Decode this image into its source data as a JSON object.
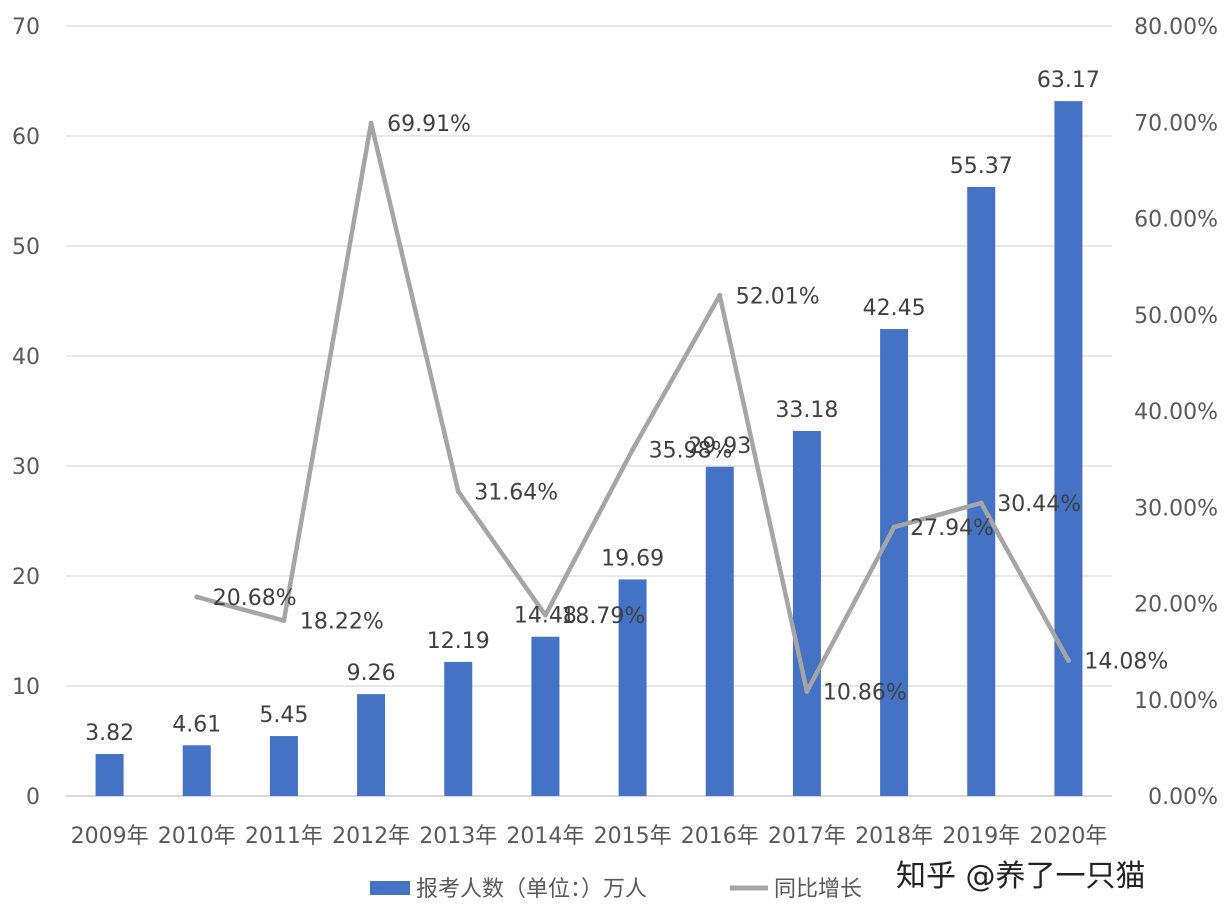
{
  "chart_data": {
    "type": "bar",
    "categories": [
      "2009年",
      "2010年",
      "2011年",
      "2012年",
      "2013年",
      "2014年",
      "2015年",
      "2016年",
      "2017年",
      "2018年",
      "2019年",
      "2020年"
    ],
    "series": [
      {
        "name": "报考人数（单位：）万人",
        "type": "bar",
        "axis": "left",
        "color": "#4472C4",
        "values": [
          3.82,
          4.61,
          5.45,
          9.26,
          12.19,
          14.48,
          19.69,
          29.93,
          33.18,
          42.45,
          55.37,
          63.17
        ],
        "labels": [
          "3.82",
          "4.61",
          "5.45",
          "9.26",
          "12.19",
          "14.48",
          "19.69",
          "29.93",
          "33.18",
          "42.45",
          "55.37",
          "63.17"
        ]
      },
      {
        "name": "同比增长",
        "type": "line",
        "axis": "right",
        "color": "#A5A5A5",
        "values": [
          null,
          20.68,
          18.22,
          69.91,
          31.64,
          18.79,
          35.98,
          52.01,
          10.86,
          27.94,
          30.44,
          14.08
        ],
        "labels": [
          null,
          "20.68%",
          "18.22%",
          "69.91%",
          "31.64%",
          "18.79%",
          "35.98%",
          "52.01%",
          "10.86%",
          "27.94%",
          "30.44%",
          "14.08%"
        ]
      }
    ],
    "y_left": {
      "min": 0,
      "max": 70,
      "ticks": [
        "0",
        "10",
        "20",
        "30",
        "40",
        "50",
        "60",
        "70"
      ]
    },
    "y_right": {
      "min": 0,
      "max": 80,
      "ticks": [
        "0.00%",
        "10.00%",
        "20.00%",
        "30.00%",
        "40.00%",
        "50.00%",
        "60.00%",
        "70.00%",
        "80.00%"
      ]
    },
    "grid": true,
    "legend_position": "bottom"
  },
  "watermark": "知乎 @养了一只猫"
}
